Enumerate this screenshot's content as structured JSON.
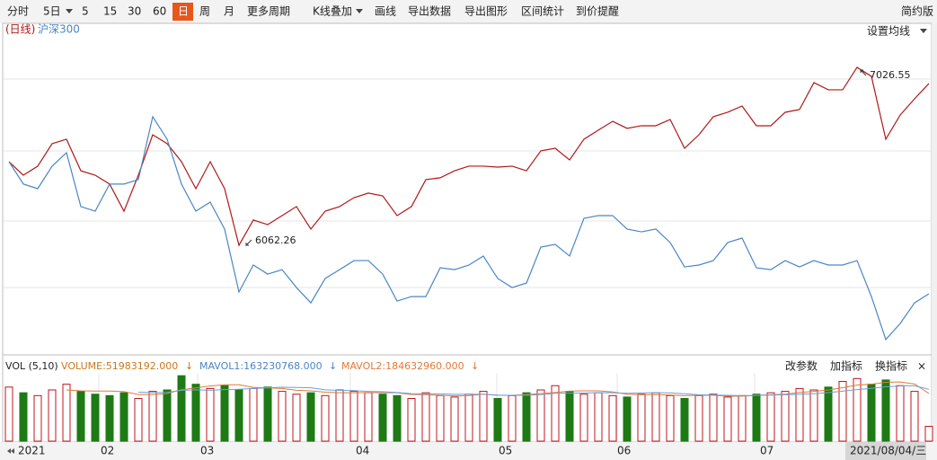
{
  "toolbar": {
    "items": [
      "分时",
      "5日",
      "5",
      "15",
      "30",
      "60",
      "日",
      "周",
      "月",
      "更多周期",
      "K线叠加",
      "画线",
      "导出数据",
      "导出图形",
      "区间统计",
      "到价提醒"
    ],
    "selected": "日",
    "right": "简约版"
  },
  "main_panel": {
    "period": "(日线)",
    "overlay_name": "沪深300",
    "ma_button": "设置均线"
  },
  "volume_panel": {
    "title": "VOL (5,10)",
    "volume": "VOLUME:51983192.000",
    "mavol1": "MAVOL1:163230768.000",
    "mavol2": "MAVOL2:184632960.000",
    "arrow": "↓",
    "buttons": [
      "改参数",
      "加指标",
      "换指标"
    ],
    "close": "×"
  },
  "x_labels": [
    "2021",
    "02",
    "03",
    "04",
    "05",
    "06",
    "07"
  ],
  "date_label": "2021/08/04/三",
  "chart_data": {
    "type": "line",
    "ylim": [
      5468,
      7265
    ],
    "series": [
      {
        "name": "(日线)",
        "color": "#b01818",
        "values": [
          6515,
          6442,
          6491,
          6613,
          6637,
          6466,
          6442,
          6394,
          6247,
          6442,
          6661,
          6613,
          6515,
          6369,
          6515,
          6369,
          6062.26,
          6199,
          6174,
          6223,
          6272,
          6150,
          6247,
          6272,
          6320,
          6345,
          6330,
          6223,
          6272,
          6418,
          6428,
          6466,
          6491,
          6491,
          6486,
          6491,
          6466,
          6574,
          6588,
          6525,
          6637,
          6686,
          6734,
          6696,
          6710,
          6710,
          6744,
          6588,
          6661,
          6759,
          6783,
          6817,
          6710,
          6710,
          6783,
          6798,
          6944,
          6905,
          6905,
          7026.55,
          6978,
          6637,
          6768,
          6856,
          6939
        ]
      },
      {
        "name": "沪深300",
        "color": "#4a86c5",
        "values": [
          6515,
          6394,
          6369,
          6491,
          6564,
          6272,
          6247,
          6394,
          6394,
          6418,
          6759,
          6637,
          6394,
          6247,
          6296,
          6150,
          5809,
          5955,
          5906,
          5930,
          5833,
          5750,
          5882,
          5930,
          5979,
          5979,
          5906,
          5760,
          5784,
          5784,
          5940,
          5930,
          5955,
          6004,
          5882,
          5833,
          5857,
          6052,
          6067,
          6004,
          6208,
          6223,
          6223,
          6150,
          6135,
          6150,
          6077,
          5945,
          5955,
          5979,
          6077,
          6101,
          5940,
          5930,
          5979,
          5945,
          5979,
          5955,
          5955,
          5979,
          5784,
          5551,
          5638,
          5750,
          5799
        ]
      }
    ],
    "annotations": [
      7026.55,
      6062.26
    ],
    "volume": {
      "ylim": [
        0,
        240000000
      ],
      "up_color": "#c0141c",
      "down_color": "#1d7a14",
      "ma_colors": [
        "#e07a3a",
        "#6aa0d8"
      ],
      "values": [
        190000000,
        170000000,
        160000000,
        180000000,
        200000000,
        175000000,
        165000000,
        160000000,
        170000000,
        150000000,
        175000000,
        180000000,
        230000000,
        200000000,
        185000000,
        195000000,
        180000000,
        185000000,
        190000000,
        175000000,
        165000000,
        170000000,
        160000000,
        180000000,
        175000000,
        170000000,
        165000000,
        160000000,
        150000000,
        170000000,
        160000000,
        155000000,
        165000000,
        175000000,
        150000000,
        160000000,
        170000000,
        180000000,
        195000000,
        175000000,
        165000000,
        170000000,
        160000000,
        155000000,
        165000000,
        170000000,
        160000000,
        150000000,
        160000000,
        165000000,
        155000000,
        160000000,
        165000000,
        170000000,
        175000000,
        185000000,
        180000000,
        190000000,
        210000000,
        220000000,
        200000000,
        215000000,
        195000000,
        175000000,
        51983192
      ]
    }
  }
}
